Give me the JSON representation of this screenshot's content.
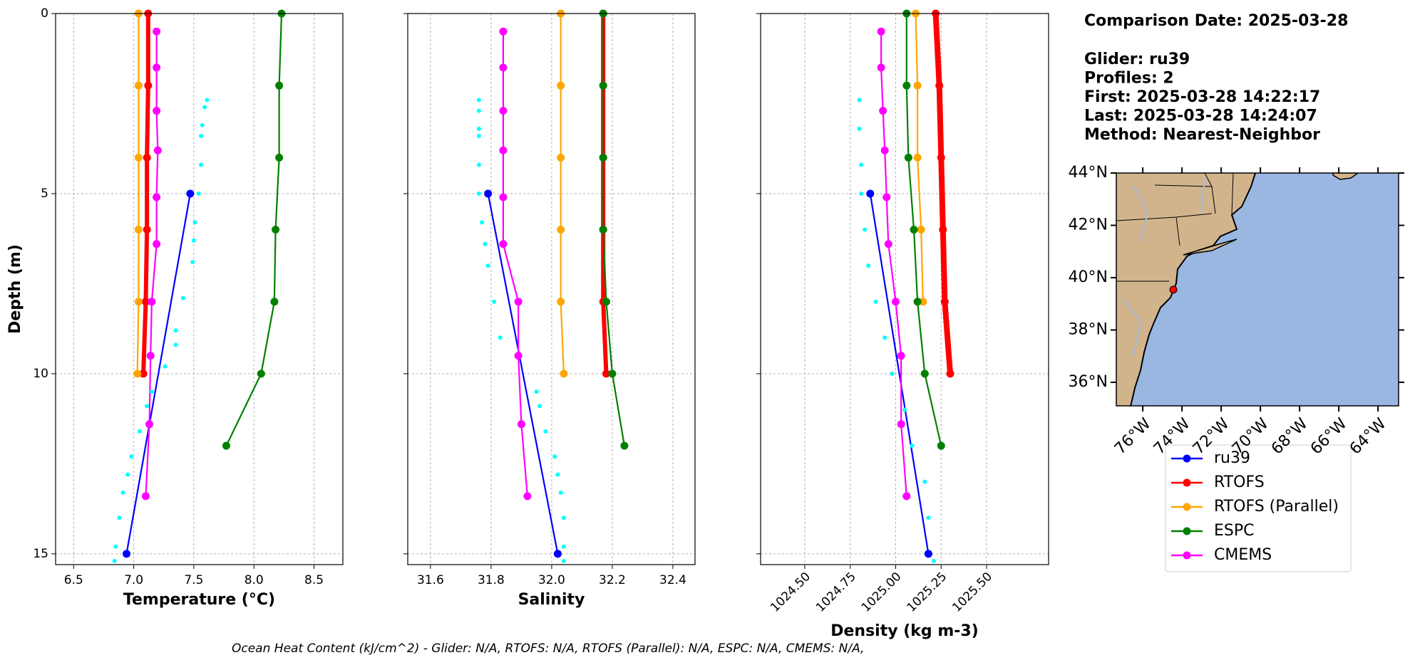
{
  "info": {
    "title": "Comparison Date: 2025-03-28",
    "lines": [
      "Glider: ru39",
      "Profiles: 2",
      "First: 2025-03-28 14:22:17",
      "Last: 2025-03-28 14:24:07",
      "Method: Nearest-Neighbor"
    ]
  },
  "footer": "Ocean Heat Content (kJ/cm^2) - Glider: N/A,  RTOFS: N/A,  RTOFS (Parallel): N/A,  ESPC: N/A,  CMEMS: N/A,",
  "chart_data": [
    {
      "type": "line",
      "xlabel": "Temperature (°C)",
      "ylabel": "Depth (m)",
      "xlim": [
        6.35,
        8.74
      ],
      "ylim": [
        15.3,
        0
      ],
      "grid": true,
      "show_ytick_labels": true,
      "xticks": [
        6.5,
        {
          "value": 7,
          "label": "7.0"
        },
        7.5,
        {
          "value": 8,
          "label": "8.0"
        },
        8.5
      ],
      "yticks": [
        0,
        5,
        10,
        15
      ],
      "series": [
        {
          "name": "ru39",
          "color": "#0000ff",
          "x": [
            7.47,
            6.94
          ],
          "y": [
            5,
            15
          ]
        },
        {
          "name": "RTOFS",
          "color": "#ff0000",
          "linewidth": 6,
          "x": [
            7.12,
            7.12,
            7.11,
            7.11,
            7.1,
            7.08
          ],
          "y": [
            0,
            2,
            4,
            6,
            8,
            10
          ]
        },
        {
          "name": "RTOFS (Parallel)",
          "color": "#ffa500",
          "x": [
            7.04,
            7.04,
            7.04,
            7.04,
            7.04,
            7.03
          ],
          "y": [
            0,
            2,
            4,
            6,
            8,
            10
          ]
        },
        {
          "name": "ESPC",
          "color": "#008000",
          "x": [
            8.23,
            8.21,
            8.21,
            8.18,
            8.17,
            8.06,
            7.77
          ],
          "y": [
            0,
            2,
            4,
            6,
            8,
            10,
            12
          ]
        },
        {
          "name": "CMEMS",
          "color": "#ff00ff",
          "x": [
            7.19,
            7.19,
            7.19,
            7.2,
            7.19,
            7.19,
            7.15,
            7.14,
            7.13,
            7.1
          ],
          "y": [
            0.5,
            1.5,
            2.7,
            3.8,
            5.1,
            6.4,
            8,
            9.5,
            11.4,
            13.4
          ]
        },
        {
          "color": "#00ffff",
          "style": "dots",
          "x": [
            7.61,
            7.59,
            7.57,
            7.56,
            7.56,
            7.54,
            7.51,
            7.5,
            7.49,
            7.41,
            7.35,
            7.35,
            7.26,
            7.15,
            7.11,
            7.05,
            6.98,
            6.95,
            6.91,
            6.88,
            6.85,
            6.84
          ],
          "y": [
            2.4,
            2.6,
            3.1,
            3.4,
            4.2,
            5,
            5.8,
            6.3,
            6.9,
            7.9,
            8.8,
            9.2,
            9.8,
            10.5,
            10.9,
            11.6,
            12.3,
            12.8,
            13.3,
            14,
            14.8,
            15.2
          ]
        }
      ]
    },
    {
      "type": "line",
      "xlabel": "Salinity",
      "xlim": [
        31.525,
        32.473
      ],
      "ylim": [
        15.3,
        0
      ],
      "grid": true,
      "show_ytick_labels": false,
      "xticks": [
        31.6,
        31.8,
        {
          "value": 32,
          "label": "32.0"
        },
        32.2,
        32.4
      ],
      "yticks": [
        0,
        5,
        10,
        15
      ],
      "series": [
        {
          "color": "#0000ff",
          "x": [
            31.79,
            32.02
          ],
          "y": [
            5,
            15
          ]
        },
        {
          "color": "#ff0000",
          "linewidth": 6,
          "x": [
            32.17,
            32.17,
            32.17,
            32.17,
            32.17,
            32.18
          ],
          "y": [
            0,
            2,
            4,
            6,
            8,
            10
          ]
        },
        {
          "color": "#ffa500",
          "x": [
            32.03,
            32.03,
            32.03,
            32.03,
            32.03,
            32.04
          ],
          "y": [
            0,
            2,
            4,
            6,
            8,
            10
          ]
        },
        {
          "color": "#008000",
          "x": [
            32.17,
            32.17,
            32.17,
            32.17,
            32.18,
            32.2,
            32.24
          ],
          "y": [
            0,
            2,
            4,
            6,
            8,
            10,
            12
          ]
        },
        {
          "color": "#ff00ff",
          "x": [
            31.84,
            31.84,
            31.84,
            31.84,
            31.84,
            31.84,
            31.89,
            31.89,
            31.9,
            31.92
          ],
          "y": [
            0.5,
            1.5,
            2.7,
            3.8,
            5.1,
            6.4,
            8,
            9.5,
            11.4,
            13.4
          ]
        },
        {
          "color": "#00ffff",
          "style": "dots",
          "x": [
            31.76,
            31.76,
            31.76,
            31.76,
            31.76,
            31.76,
            31.77,
            31.78,
            31.79,
            31.81,
            31.83,
            31.95,
            31.96,
            31.98,
            32.01,
            32.02,
            32.03,
            32.04,
            32.04,
            32.04
          ],
          "y": [
            2.4,
            2.7,
            3.2,
            3.4,
            4.2,
            5,
            5.8,
            6.4,
            7,
            8,
            9,
            10.5,
            10.9,
            11.6,
            12.3,
            12.8,
            13.3,
            14,
            14.8,
            15.2
          ]
        }
      ]
    },
    {
      "type": "line",
      "xlabel": "Density (kg m-3)",
      "rotate_xticks": true,
      "xlim": [
        1024.257,
        1025.841
      ],
      "ylim": [
        15.3,
        0
      ],
      "grid": true,
      "show_ytick_labels": false,
      "xticks": [
        {
          "value": 1024.5,
          "label": "1024.50"
        },
        {
          "value": 1024.75,
          "label": "1024.75"
        },
        {
          "value": 1025,
          "label": "1025.00"
        },
        {
          "value": 1025.25,
          "label": "1025.25"
        },
        {
          "value": 1025.5,
          "label": "1025.50"
        }
      ],
      "yticks": [
        0,
        5,
        10,
        15
      ],
      "series": [
        {
          "color": "#0000ff",
          "x": [
            1024.86,
            1025.18
          ],
          "y": [
            5,
            15
          ]
        },
        {
          "color": "#ff0000",
          "linewidth": 8,
          "x": [
            1025.22,
            1025.24,
            1025.25,
            1025.26,
            1025.27,
            1025.3
          ],
          "y": [
            0,
            2,
            4,
            6,
            8,
            10
          ]
        },
        {
          "color": "#ffa500",
          "x": [
            1025.11,
            1025.12,
            1025.12,
            1025.14,
            1025.15,
            null
          ],
          "y": [
            0,
            2,
            4,
            6,
            8,
            10
          ]
        },
        {
          "color": "#008000",
          "x": [
            1025.06,
            1025.06,
            1025.07,
            1025.1,
            1025.12,
            1025.16,
            1025.25
          ],
          "y": [
            0,
            2,
            4,
            6,
            8,
            10,
            12
          ]
        },
        {
          "color": "#ff00ff",
          "x": [
            1024.92,
            1024.92,
            1024.93,
            1024.94,
            1024.95,
            1024.96,
            1025,
            1025.03,
            1025.03,
            1025.06
          ],
          "y": [
            0.5,
            1.5,
            2.7,
            3.8,
            5.1,
            6.4,
            8,
            9.5,
            11.4,
            13.4
          ]
        },
        {
          "color": "#00ffff",
          "style": "dots",
          "x": [
            1024.8,
            1024.8,
            1024.81,
            1024.81,
            1024.83,
            1024.85,
            1024.89,
            1024.94,
            1024.98,
            1025.05,
            1025.09,
            1025.16,
            1025.18,
            1025.21
          ],
          "y": [
            2.4,
            3.2,
            4.2,
            5,
            6,
            7,
            8,
            9,
            10,
            11,
            12,
            13,
            14,
            15.2
          ]
        }
      ]
    },
    {
      "type": "map",
      "xlim": [
        -77.35,
        -62.95
      ],
      "ylim": [
        35.1,
        44
      ],
      "xticks": [
        {
          "value": -76,
          "label": "76°W"
        },
        {
          "value": -74,
          "label": "74°W"
        },
        {
          "value": -72,
          "label": "72°W"
        },
        {
          "value": -70,
          "label": "70°W"
        },
        {
          "value": -68,
          "label": "68°W"
        },
        {
          "value": -66,
          "label": "66°W"
        },
        {
          "value": -64,
          "label": "64°W"
        }
      ],
      "yticks": [
        {
          "value": 36,
          "label": "36°N"
        },
        {
          "value": 38,
          "label": "38°N"
        },
        {
          "value": 40,
          "label": "40°N"
        },
        {
          "value": 42,
          "label": "42°N"
        },
        {
          "value": 44,
          "label": "44°N"
        }
      ],
      "marker": {
        "x": -74.44,
        "y": 39.54,
        "color": "#ff0000"
      }
    }
  ]
}
